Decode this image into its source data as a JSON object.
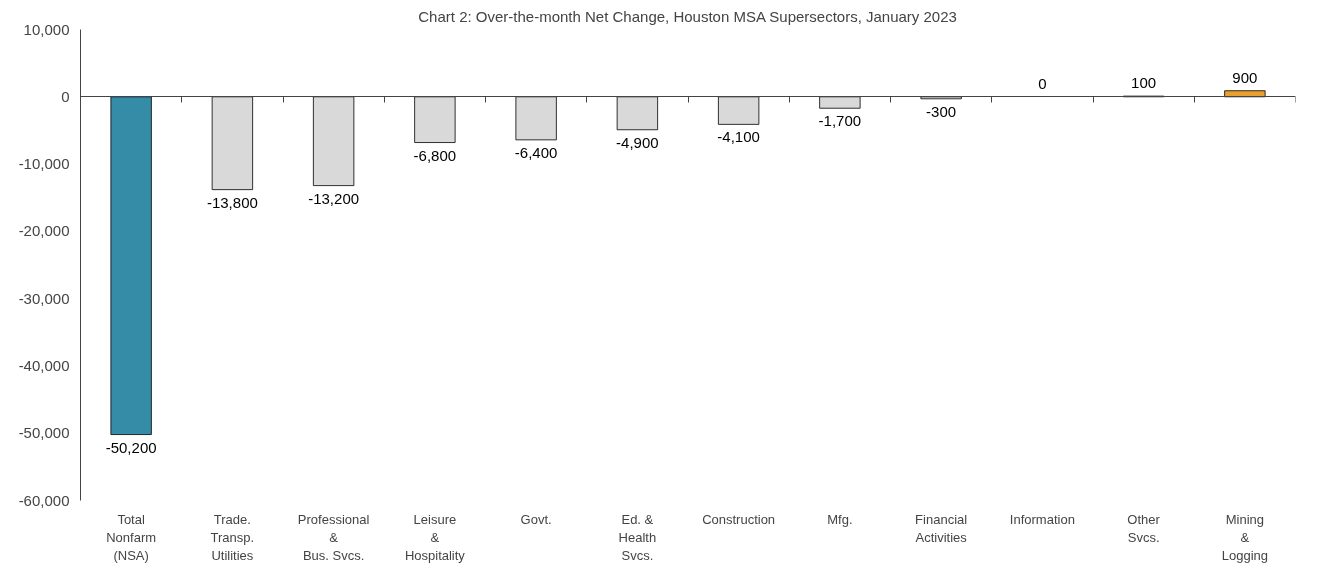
{
  "chart_data": {
    "type": "bar",
    "title": "Chart 2: Over-the-month Net Change, Houston MSA Supersectors, January 2023",
    "categories": [
      "Total\nNonfarm\n(NSA)",
      "Trade.\nTransp.\nUtilities",
      "Professional\n&\nBus. Svcs.",
      "Leisure\n&\nHospitality",
      "Govt.",
      "Ed. &\nHealth\nSvcs.",
      "Construction",
      "Mfg.",
      "Financial\nActivities",
      "Information",
      "Other\nSvcs.",
      "Mining\n&\nLogging"
    ],
    "values": [
      -50200,
      -13800,
      -13200,
      -6800,
      -6400,
      -4900,
      -4100,
      -1700,
      -300,
      0,
      100,
      900
    ],
    "colors": [
      "#348ca6",
      "#d9d9d9",
      "#d9d9d9",
      "#d9d9d9",
      "#d9d9d9",
      "#d9d9d9",
      "#d9d9d9",
      "#d9d9d9",
      "#d9d9d9",
      "#d9d9d9",
      "#d9d9d9",
      "#e8a02f"
    ],
    "ylim": [
      -60000,
      10000
    ],
    "yticks": [
      {
        "value": -60000,
        "label": "-60,000"
      },
      {
        "value": -50000,
        "label": "-50,000"
      },
      {
        "value": -40000,
        "label": "-40,000"
      },
      {
        "value": -30000,
        "label": "-30,000"
      },
      {
        "value": -20000,
        "label": "-20,000"
      },
      {
        "value": -10000,
        "label": "-10,000"
      },
      {
        "value": 0,
        "label": "0"
      },
      {
        "value": 10000,
        "label": "10,000"
      }
    ],
    "value_labels": [
      "-50,200",
      "-13,800",
      "-13,200",
      "-6,800",
      "-6,400",
      "-4,900",
      "-4,100",
      "-1,700",
      "-300",
      "0",
      "100",
      "900"
    ],
    "tick_labels": true
  }
}
